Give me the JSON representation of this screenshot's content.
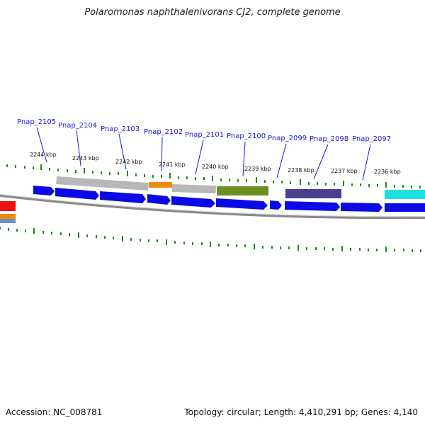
{
  "title": "Polaromonas naphthalenivorans CJ2, complete genome",
  "accession": "Accession: NC_008781",
  "topology": "Topology: circular; Length: 4,410,291 bp; Genes: 4,140",
  "colors": {
    "gene_arrow": "#0a0ae6",
    "backbone": "#8a8a8a",
    "tick": "#1f8a1f",
    "label": "#1a1ad0",
    "feature_gray": "#b8b8b8",
    "feature_orange": "#ee8a10",
    "feature_olive": "#6b8e23",
    "feature_purple": "#4a3f8f",
    "feature_cyan": "#1ee0e0",
    "feature_red": "#ee1111",
    "feature_steelblue": "#6a90c8"
  },
  "gene_labels": [
    "Pnap_2105",
    "Pnap_2104",
    "Pnap_2103",
    "Pnap_2102",
    "Pnap_2101",
    "Pnap_2100",
    "Pnap_2099",
    "Pnap_2098",
    "Pnap_2097"
  ],
  "scale_labels": [
    "2244 kbp",
    "2243 kbp",
    "2242 kbp",
    "2241 kbp",
    "2240 kbp",
    "2239 kbp",
    "2238 kbp",
    "2237 kbp",
    "2236 kbp"
  ]
}
